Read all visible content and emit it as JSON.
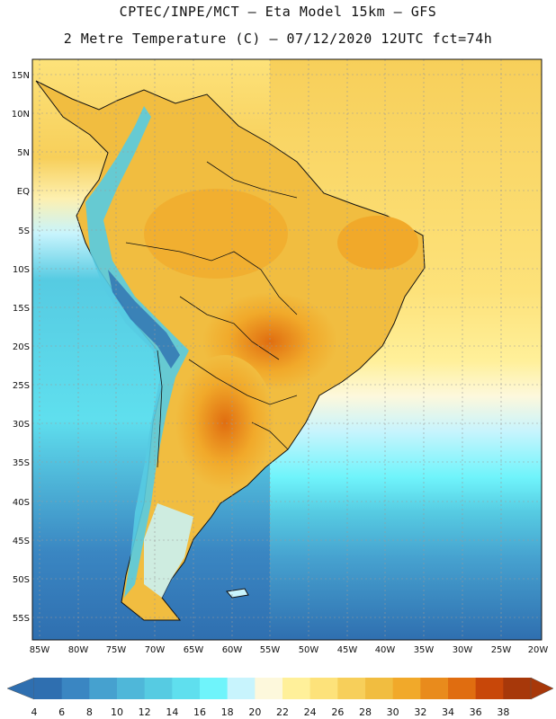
{
  "title": {
    "line1": "CPTEC/INPE/MCT –  Eta Model 15km – GFS",
    "line2": "2 Metre Temperature (C) – 07/12/2020 12UTC fct=74h"
  },
  "map": {
    "lat_labels": [
      "15N",
      "10N",
      "5N",
      "EQ",
      "5S",
      "10S",
      "15S",
      "20S",
      "25S",
      "30S",
      "35S",
      "40S",
      "45S",
      "50S",
      "55S"
    ],
    "lon_labels": [
      "85W",
      "80W",
      "75W",
      "70W",
      "65W",
      "60W",
      "55W",
      "50W",
      "45W",
      "40W",
      "35W",
      "30W",
      "25W",
      "20W"
    ],
    "region": "South America"
  },
  "colorbar": {
    "labels": [
      "4",
      "6",
      "8",
      "10",
      "12",
      "14",
      "16",
      "18",
      "20",
      "22",
      "24",
      "26",
      "28",
      "30",
      "32",
      "34",
      "36",
      "38"
    ],
    "colors": [
      "#2f6fb0",
      "#3a86c2",
      "#46a1cf",
      "#4fb7d9",
      "#56cbe2",
      "#5fdfee",
      "#6ff4fb",
      "#c8f4fd",
      "#fdf8dc",
      "#fff09a",
      "#fde27a",
      "#f7cf5a",
      "#f1bd40",
      "#f1a92a",
      "#e98b1c",
      "#e06d10",
      "#c84709",
      "#a7380a"
    ]
  }
}
